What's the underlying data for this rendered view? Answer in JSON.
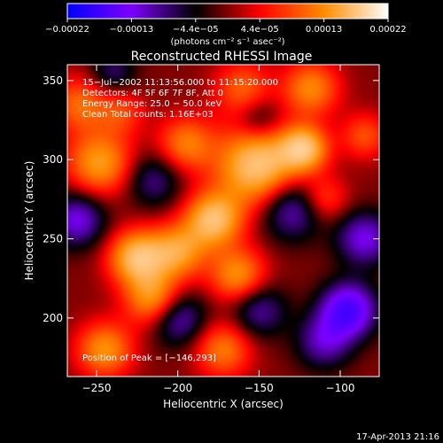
{
  "chart_data": {
    "type": "heatmap",
    "title": "Reconstructed RHESSI Image",
    "xlabel": "Heliocentric X (arcsec)",
    "ylabel": "Heliocentric Y (arcsec)",
    "xlim": [
      -268,
      -76
    ],
    "ylim": [
      163,
      360
    ],
    "x_ticks": [
      {
        "value": -250,
        "label": "−250"
      },
      {
        "value": -200,
        "label": "−200"
      },
      {
        "value": -150,
        "label": "−150"
      },
      {
        "value": -100,
        "label": "−100"
      }
    ],
    "y_ticks": [
      {
        "value": 200,
        "label": "200"
      },
      {
        "value": 250,
        "label": "250"
      },
      {
        "value": 300,
        "label": "300"
      },
      {
        "value": 350,
        "label": "350"
      }
    ],
    "colorbar": {
      "min": -0.00022,
      "max": 0.00022,
      "tick_labels": [
        "−0.00022",
        "−0.00013",
        "−4.4e−05",
        "4.4e−05",
        "0.00013",
        "0.00022"
      ],
      "unit_label": "(photons cm⁻² s⁻¹ asec⁻²)",
      "colors": [
        "#0000ff",
        "#7d00ff",
        "#000000",
        "#ff0000",
        "#ff8c00",
        "#ffffff"
      ]
    },
    "annotations": [
      "15−Jul−2002 11:13:56.000 to 11:15:20.000",
      "Detectors: 4F 5F 6F 7F 8F, Att 0",
      "Energy Range: 25.0 − 50.0 keV",
      "Clean     Total counts: 1.16E+03"
    ],
    "peak_label": "Position of Peak = [−146,293]",
    "peak": {
      "x": -146,
      "y": 293
    },
    "blobs": [
      {
        "x": -150,
        "y": 296,
        "amp": 1.0,
        "s": 18
      },
      {
        "x": -122,
        "y": 307,
        "amp": 0.85,
        "s": 10
      },
      {
        "x": -178,
        "y": 262,
        "amp": 0.9,
        "s": 12
      },
      {
        "x": -225,
        "y": 238,
        "amp": 0.9,
        "s": 12
      },
      {
        "x": -200,
        "y": 242,
        "amp": 0.7,
        "s": 12
      },
      {
        "x": -163,
        "y": 227,
        "amp": 0.65,
        "s": 12
      },
      {
        "x": -248,
        "y": 298,
        "amp": 0.7,
        "s": 14
      },
      {
        "x": -260,
        "y": 335,
        "amp": 0.5,
        "s": 12
      },
      {
        "x": -195,
        "y": 310,
        "amp": 0.55,
        "s": 12
      },
      {
        "x": -215,
        "y": 212,
        "amp": 0.7,
        "s": 12
      },
      {
        "x": -245,
        "y": 180,
        "amp": 0.65,
        "s": 12
      },
      {
        "x": -172,
        "y": 180,
        "amp": 0.55,
        "s": 12
      },
      {
        "x": -118,
        "y": 345,
        "amp": 0.6,
        "s": 12
      },
      {
        "x": -160,
        "y": 345,
        "amp": 0.45,
        "s": 12
      },
      {
        "x": -110,
        "y": 275,
        "amp": 0.4,
        "s": 10
      },
      {
        "x": -85,
        "y": 315,
        "amp": 0.4,
        "s": 10
      },
      {
        "x": -235,
        "y": 330,
        "amp": 0.35,
        "s": 10
      },
      {
        "x": -130,
        "y": 270,
        "amp": -0.6,
        "s": 14
      },
      {
        "x": -95,
        "y": 205,
        "amp": -0.9,
        "s": 12
      },
      {
        "x": -85,
        "y": 250,
        "amp": -0.6,
        "s": 12
      },
      {
        "x": -262,
        "y": 262,
        "amp": -0.6,
        "s": 12
      },
      {
        "x": -200,
        "y": 200,
        "amp": -0.55,
        "s": 12
      },
      {
        "x": -215,
        "y": 287,
        "amp": -0.4,
        "s": 12
      },
      {
        "x": -110,
        "y": 185,
        "amp": -0.5,
        "s": 12
      },
      {
        "x": -150,
        "y": 205,
        "amp": -0.45,
        "s": 12
      },
      {
        "x": -240,
        "y": 355,
        "amp": -0.35,
        "s": 10
      },
      {
        "x": -150,
        "y": 325,
        "amp": -0.35,
        "s": 10
      }
    ]
  },
  "footer": {
    "timestamp": "17-Apr-2013 21:16"
  }
}
